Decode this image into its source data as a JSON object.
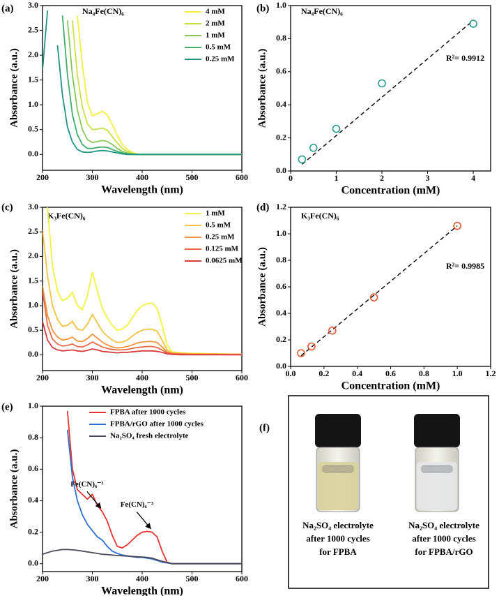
{
  "chart_data": [
    {
      "type": "line",
      "panel": "(a)",
      "title": "Na₄Fe(CN)₆",
      "x_label": "Wavelength (nm)",
      "y_label": "Absorbance (a.u.)",
      "x": [
        200,
        210,
        220,
        230,
        240,
        250,
        260,
        270,
        280,
        290,
        300,
        310,
        320,
        330,
        340,
        350,
        360,
        370,
        380,
        390,
        400,
        450,
        500,
        550,
        600
      ],
      "series": [
        {
          "name": "4 mM",
          "color": "#f4f03c",
          "values": [
            null,
            null,
            null,
            null,
            null,
            null,
            null,
            2.8,
            1.8,
            1.05,
            0.78,
            0.82,
            0.87,
            0.8,
            0.6,
            0.38,
            0.2,
            0.1,
            0.04,
            0.01,
            0,
            0,
            0,
            0,
            0
          ]
        },
        {
          "name": "2 mM",
          "color": "#c8df4a",
          "values": [
            null,
            null,
            null,
            null,
            null,
            null,
            2.7,
            1.6,
            0.95,
            0.62,
            0.5,
            0.51,
            0.53,
            0.49,
            0.36,
            0.23,
            0.12,
            0.06,
            0.03,
            0.01,
            0,
            0,
            0,
            0,
            0
          ]
        },
        {
          "name": "1 mM",
          "color": "#86c85a",
          "values": [
            null,
            null,
            null,
            null,
            null,
            2.7,
            1.6,
            0.9,
            0.5,
            0.3,
            0.24,
            0.26,
            0.28,
            0.26,
            0.2,
            0.12,
            0.06,
            0.03,
            0.01,
            0,
            0,
            0,
            0,
            0,
            0
          ]
        },
        {
          "name": "0.5 mM",
          "color": "#3fae6a",
          "values": [
            null,
            null,
            null,
            null,
            2.8,
            1.6,
            0.8,
            0.4,
            0.2,
            0.12,
            0.12,
            0.14,
            0.15,
            0.14,
            0.1,
            0.06,
            0.03,
            0.01,
            0,
            0,
            0,
            0,
            0,
            0,
            0
          ]
        },
        {
          "name": "0.25 mM",
          "color": "#1f9484",
          "values": [
            1.7,
            2.9,
            null,
            2.2,
            1.2,
            0.55,
            0.25,
            0.1,
            0.05,
            0.04,
            0.05,
            0.07,
            0.08,
            0.07,
            0.05,
            0.03,
            0.01,
            0,
            0,
            0,
            0,
            0,
            0,
            0,
            0
          ]
        }
      ],
      "xlim": [
        200,
        600
      ],
      "xticks": [
        200,
        300,
        400,
        500,
        600
      ],
      "ylim": [
        -0.32,
        3.0
      ],
      "yticks": [
        {
          "value": 0,
          "label": "0.0"
        },
        0.5,
        {
          "value": 1,
          "label": "1.0"
        },
        1.5,
        {
          "value": 2,
          "label": "2.0"
        },
        2.5,
        {
          "value": 3,
          "label": "3.0"
        }
      ],
      "legend": "upper right"
    },
    {
      "type": "scatter",
      "panel": "(b)",
      "title": "Na₄Fe(CN)₆",
      "annotation": "R²= 0.9912",
      "x_label": "Concentration (mM)",
      "y_label": "Absorbance (a.u.)",
      "x": [
        0.25,
        0.5,
        1,
        2,
        4
      ],
      "values": [
        0.07,
        0.14,
        0.255,
        0.53,
        0.89
      ],
      "color": "#2a9d8f",
      "fit": {
        "x": [
          0.25,
          4
        ],
        "values": [
          0.04,
          0.91
        ]
      },
      "xlim": [
        0,
        4.38
      ],
      "xticks": [
        0,
        1,
        2,
        3,
        4
      ],
      "ylim": [
        0,
        1.0
      ],
      "yticks": [
        {
          "value": 0,
          "label": "0.0"
        },
        0.2,
        0.4,
        0.6,
        0.8,
        {
          "value": 1,
          "label": "1.0"
        }
      ]
    },
    {
      "type": "line",
      "panel": "(c)",
      "title": "K₃Fe(CN)₆",
      "x_label": "Wavelength (nm)",
      "y_label": "Absorbance (a.u.)",
      "x": [
        200,
        210,
        220,
        230,
        240,
        250,
        260,
        270,
        280,
        290,
        300,
        310,
        320,
        330,
        340,
        350,
        360,
        370,
        380,
        390,
        400,
        410,
        420,
        430,
        440,
        450,
        460,
        480,
        500,
        550,
        600
      ],
      "series": [
        {
          "name": "1 mM",
          "color": "#f2f23a",
          "values": [
            null,
            3.0,
            1.8,
            1.3,
            1.1,
            1.15,
            1.27,
            1.0,
            0.92,
            1.2,
            1.68,
            1.3,
            0.95,
            0.75,
            0.6,
            0.5,
            0.52,
            0.6,
            0.75,
            0.9,
            1.0,
            1.04,
            1.05,
            0.95,
            0.6,
            0.2,
            0.06,
            0.04,
            0.03,
            0.02,
            0.01
          ]
        },
        {
          "name": "0.5 mM",
          "color": "#f3c23e",
          "values": [
            2.55,
            1.6,
            1.0,
            0.72,
            0.58,
            0.6,
            0.68,
            0.52,
            0.5,
            0.62,
            0.82,
            0.65,
            0.48,
            0.38,
            0.3,
            0.25,
            0.26,
            0.3,
            0.38,
            0.45,
            0.5,
            0.52,
            0.52,
            0.48,
            0.3,
            0.1,
            0.04,
            0.03,
            0.02,
            0.01,
            0.01
          ]
        },
        {
          "name": "0.25 mM",
          "color": "#f0943c",
          "values": [
            1.4,
            0.8,
            0.5,
            0.36,
            0.3,
            0.32,
            0.36,
            0.28,
            0.27,
            0.33,
            0.42,
            0.34,
            0.26,
            0.2,
            0.16,
            0.14,
            0.15,
            0.17,
            0.2,
            0.24,
            0.26,
            0.27,
            0.27,
            0.25,
            0.16,
            0.06,
            0.03,
            0.02,
            0.01,
            0.01,
            0.01
          ]
        },
        {
          "name": "0.125 mM",
          "color": "#ea6a48",
          "values": [
            1.3,
            0.6,
            0.32,
            0.22,
            0.18,
            0.19,
            0.22,
            0.17,
            0.16,
            0.2,
            0.26,
            0.21,
            0.16,
            0.13,
            0.11,
            0.1,
            0.1,
            0.11,
            0.13,
            0.15,
            0.16,
            0.17,
            0.17,
            0.15,
            0.1,
            0.04,
            0.02,
            0.01,
            0.01,
            0.01,
            0
          ]
        },
        {
          "name": "0.0625 mM",
          "color": "#d8393a",
          "values": [
            0.68,
            0.3,
            0.15,
            0.1,
            0.08,
            0.09,
            0.1,
            0.08,
            0.07,
            0.09,
            0.12,
            0.1,
            0.07,
            0.06,
            0.05,
            0.04,
            0.05,
            0.05,
            0.06,
            0.07,
            0.08,
            0.08,
            0.08,
            0.07,
            0.05,
            0.02,
            0.01,
            0,
            0,
            0,
            0
          ]
        }
      ],
      "xlim": [
        200,
        600
      ],
      "xticks": [
        200,
        300,
        400,
        500,
        600
      ],
      "ylim": [
        -0.32,
        3.0
      ],
      "yticks": [
        {
          "value": 0,
          "label": "0.0"
        },
        0.5,
        {
          "value": 1,
          "label": "1.0"
        },
        1.5,
        {
          "value": 2,
          "label": "2.0"
        },
        2.5,
        {
          "value": 3,
          "label": "3.0"
        }
      ],
      "legend": "upper right"
    },
    {
      "type": "scatter",
      "panel": "(d)",
      "title": "K₃Fe(CN)₆",
      "annotation": "R²= 0.9985",
      "x_label": "Concentration (mM)",
      "y_label": "Absorbance (a.u.)",
      "x": [
        0.0625,
        0.125,
        0.25,
        0.5,
        1
      ],
      "values": [
        0.1,
        0.15,
        0.27,
        0.52,
        1.06
      ],
      "color": "#e4572e",
      "fit": {
        "x": [
          0.0625,
          1
        ],
        "values": [
          0.08,
          1.06
        ]
      },
      "xlim": [
        0,
        1.2
      ],
      "xticks": [
        {
          "value": 0,
          "label": "0.0"
        },
        0.2,
        0.4,
        0.6,
        0.8,
        {
          "value": 1,
          "label": "1.0"
        },
        1.2
      ],
      "ylim": [
        0,
        1.2
      ],
      "yticks": [
        {
          "value": 0,
          "label": "0.0"
        },
        0.2,
        0.4,
        0.6,
        0.8,
        {
          "value": 1,
          "label": "1.0"
        },
        1.2
      ]
    },
    {
      "type": "line",
      "panel": "(e)",
      "x_label": "Wavelength (nm)",
      "y_label": "Absorbance (a.u.)",
      "annotations": [
        "Fe(CN)₆⁻²",
        "Fe(CN)₆⁻³"
      ],
      "x": [
        200,
        210,
        220,
        230,
        240,
        250,
        260,
        270,
        280,
        290,
        300,
        310,
        320,
        330,
        340,
        350,
        360,
        370,
        380,
        390,
        400,
        410,
        420,
        430,
        440,
        450,
        460,
        500,
        550,
        600
      ],
      "series": [
        {
          "name": "FPBA after 1000 cycles",
          "color": "#e8332f",
          "values": [
            null,
            null,
            null,
            null,
            null,
            0.97,
            0.6,
            0.47,
            0.44,
            0.41,
            0.44,
            0.37,
            0.33,
            0.27,
            0.18,
            0.11,
            0.1,
            0.12,
            0.15,
            0.18,
            0.2,
            0.205,
            0.2,
            0.17,
            0.08,
            0.01,
            0,
            0,
            0,
            0
          ]
        },
        {
          "name": "FPBA/rGO after 1000 cycles",
          "color": "#2f6fd0",
          "values": [
            null,
            null,
            null,
            null,
            null,
            0.85,
            0.55,
            0.4,
            0.31,
            0.25,
            0.21,
            0.17,
            0.15,
            0.11,
            0.08,
            0.065,
            0.055,
            0.05,
            0.045,
            0.04,
            0.04,
            0.035,
            0.03,
            0.02,
            0.01,
            0.005,
            0,
            0,
            0,
            0
          ]
        },
        {
          "name": "Na₂SO₄ fresh electrolyte",
          "color": "#4a4a5a",
          "values": [
            0.06,
            0.07,
            0.08,
            0.085,
            0.09,
            0.09,
            0.088,
            0.085,
            0.08,
            0.075,
            0.07,
            0.065,
            0.06,
            0.058,
            0.055,
            0.052,
            0.05,
            0.048,
            0.046,
            0.044,
            0.042,
            0.04,
            0.035,
            0.025,
            0.015,
            0.008,
            0,
            0,
            0,
            0
          ]
        }
      ],
      "xlim": [
        200,
        600
      ],
      "xticks": [
        200,
        300,
        400,
        500,
        600
      ],
      "ylim": [
        -0.05,
        1.0
      ],
      "yticks": [
        {
          "value": 0,
          "label": "0.0"
        },
        0.2,
        0.4,
        0.6,
        0.8,
        {
          "value": 1,
          "label": "1.0"
        }
      ],
      "legend": "upper right"
    }
  ],
  "photo_panel": {
    "panel": "(f)",
    "captions": [
      [
        "Na₂SO₄ electrolyte",
        "after 1000 cycles",
        "for FPBA"
      ],
      [
        "Na₂SO₄ electrolyte",
        "after 1000 cycles",
        "for FPBA/rGO"
      ]
    ]
  }
}
